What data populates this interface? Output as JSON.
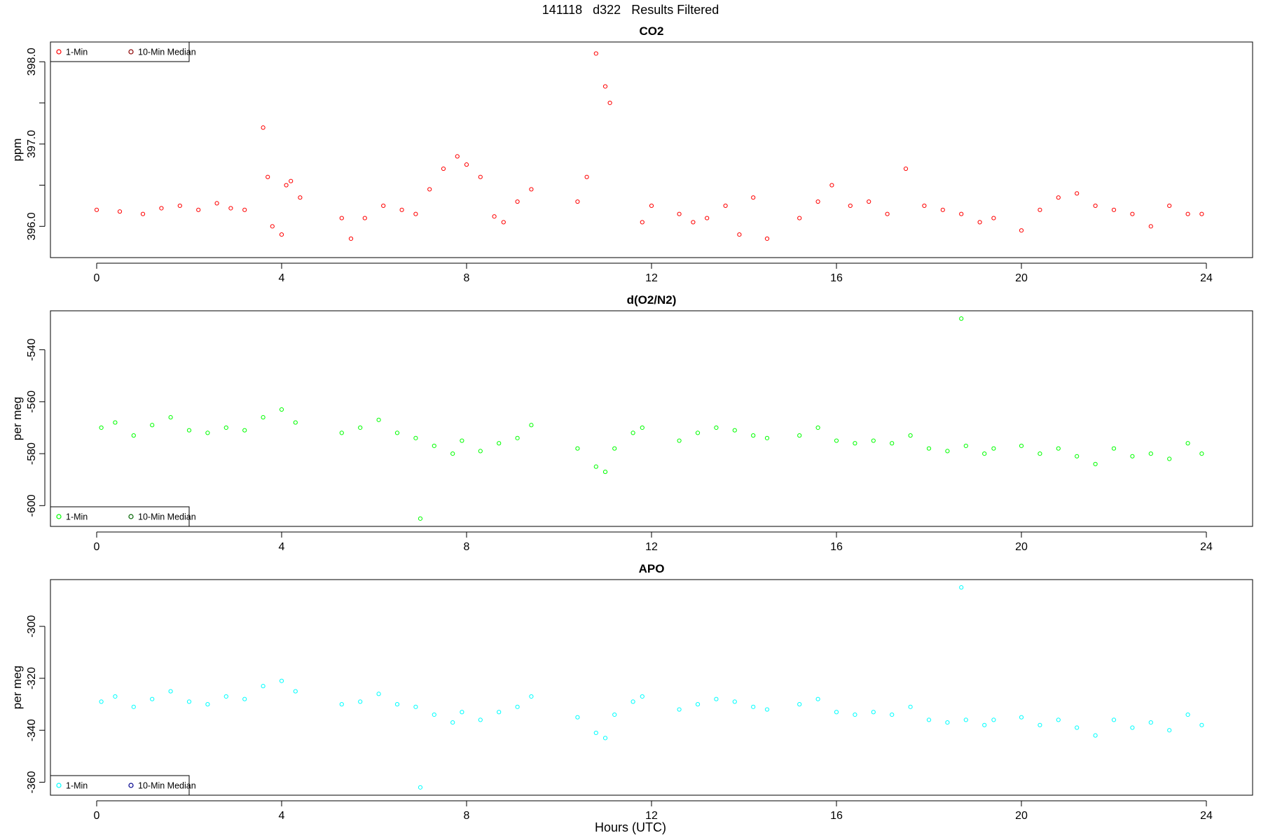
{
  "figure": {
    "title": "141118   d322   Results Filtered",
    "xlabel": "Hours (UTC)"
  },
  "chart_data": [
    {
      "type": "scatter",
      "title": "CO2",
      "xlabel": "",
      "ylabel": "ppm",
      "xlim": [
        -1.0,
        25.0
      ],
      "ylim": [
        395.62,
        398.24
      ],
      "xticks": [
        0,
        4,
        8,
        12,
        16,
        20,
        24
      ],
      "xtick_labels": [
        "0",
        "4",
        "8",
        "12",
        "16",
        "20",
        "24"
      ],
      "yticks": [
        396.0,
        396.5,
        397.0,
        397.5,
        398.0
      ],
      "ytick_labels": [
        "396.0",
        "",
        "397.0",
        "",
        "398.0"
      ],
      "grid": false,
      "legend_position": "top-left",
      "series": [
        {
          "name": "1-Min",
          "color": "#ff0000",
          "x": [
            0.0,
            0.5,
            1.0,
            1.4,
            1.8,
            2.2,
            2.6,
            2.9,
            3.2,
            3.6,
            3.7,
            3.8,
            4.0,
            4.1,
            4.2,
            4.4,
            5.3,
            5.5,
            5.8,
            6.2,
            6.6,
            6.9,
            7.2,
            7.5,
            7.8,
            8.0,
            8.3,
            8.6,
            8.8,
            9.1,
            9.4,
            10.4,
            10.6,
            10.8,
            11.0,
            11.1,
            11.8,
            12.0,
            12.6,
            12.9,
            13.2,
            13.6,
            13.9,
            14.2,
            14.5,
            15.2,
            15.6,
            15.9,
            16.3,
            16.7,
            17.1,
            17.5,
            17.9,
            18.3,
            18.7,
            19.1,
            19.4,
            20.0,
            20.4,
            20.8,
            21.2,
            21.6,
            22.0,
            22.4,
            22.8,
            23.2,
            23.6,
            23.9
          ],
          "y": [
            396.2,
            396.18,
            396.15,
            396.22,
            396.25,
            396.2,
            396.28,
            396.22,
            396.2,
            397.2,
            396.6,
            396.0,
            395.9,
            396.5,
            396.55,
            396.35,
            396.1,
            395.85,
            396.1,
            396.25,
            396.2,
            396.15,
            396.45,
            396.7,
            396.85,
            396.75,
            396.6,
            396.12,
            396.05,
            396.3,
            396.45,
            396.3,
            396.6,
            398.1,
            397.7,
            397.5,
            396.05,
            396.25,
            396.15,
            396.05,
            396.1,
            396.25,
            395.9,
            396.35,
            395.85,
            396.1,
            396.3,
            396.5,
            396.25,
            396.3,
            396.15,
            396.7,
            396.25,
            396.2,
            396.15,
            396.05,
            396.1,
            395.95,
            396.2,
            396.35,
            396.4,
            396.25,
            396.2,
            396.15,
            396.0,
            396.25,
            396.15,
            396.15
          ]
        },
        {
          "name": "10-Min Median",
          "color": "#8b0000",
          "x": [],
          "y": []
        }
      ]
    },
    {
      "type": "scatter",
      "title": "d(O2/N2)",
      "xlabel": "",
      "ylabel": "per meg",
      "xlim": [
        -1.0,
        25.0
      ],
      "ylim": [
        -608,
        -525
      ],
      "xticks": [
        0,
        4,
        8,
        12,
        16,
        20,
        24
      ],
      "xtick_labels": [
        "0",
        "4",
        "8",
        "12",
        "16",
        "20",
        "24"
      ],
      "yticks": [
        -600,
        -580,
        -560,
        -540
      ],
      "ytick_labels": [
        "-600",
        "-580",
        "-560",
        "-540"
      ],
      "grid": false,
      "legend_position": "bottom-left",
      "series": [
        {
          "name": "1-Min",
          "color": "#00ff00",
          "x": [
            0.1,
            0.4,
            0.8,
            1.2,
            1.6,
            2.0,
            2.4,
            2.8,
            3.2,
            3.6,
            4.0,
            4.3,
            5.3,
            5.7,
            6.1,
            6.5,
            6.9,
            7.0,
            7.3,
            7.7,
            7.9,
            8.3,
            8.7,
            9.1,
            9.4,
            10.4,
            10.8,
            11.0,
            11.2,
            11.6,
            11.8,
            12.6,
            13.0,
            13.4,
            13.8,
            14.2,
            14.5,
            15.2,
            15.6,
            16.0,
            16.4,
            16.8,
            17.2,
            17.6,
            18.0,
            18.4,
            18.7,
            18.8,
            19.2,
            19.4,
            20.0,
            20.4,
            20.8,
            21.2,
            21.6,
            22.0,
            22.4,
            22.8,
            23.2,
            23.6,
            23.9
          ],
          "y": [
            -570,
            -568,
            -573,
            -569,
            -566,
            -571,
            -572,
            -570,
            -571,
            -566,
            -563,
            -568,
            -572,
            -570,
            -567,
            -572,
            -574,
            -605,
            -577,
            -580,
            -575,
            -579,
            -576,
            -574,
            -569,
            -578,
            -585,
            -587,
            -578,
            -572,
            -570,
            -575,
            -572,
            -570,
            -571,
            -573,
            -574,
            -573,
            -570,
            -575,
            -576,
            -575,
            -576,
            -573,
            -578,
            -579,
            -528,
            -577,
            -580,
            -578,
            -577,
            -580,
            -578,
            -581,
            -584,
            -578,
            -581,
            -580,
            -582,
            -576,
            -580
          ]
        },
        {
          "name": "10-Min Median",
          "color": "#006400",
          "x": [],
          "y": []
        }
      ]
    },
    {
      "type": "scatter",
      "title": "APO",
      "xlabel": "",
      "ylabel": "per meg",
      "xlim": [
        -1.0,
        25.0
      ],
      "ylim": [
        -365,
        -282
      ],
      "xticks": [
        0,
        4,
        8,
        12,
        16,
        20,
        24
      ],
      "xtick_labels": [
        "0",
        "4",
        "8",
        "12",
        "16",
        "20",
        "24"
      ],
      "yticks": [
        -360,
        -340,
        -320,
        -300
      ],
      "ytick_labels": [
        "-360",
        "-340",
        "-320",
        "-300"
      ],
      "grid": false,
      "legend_position": "bottom-left",
      "series": [
        {
          "name": "1-Min",
          "color": "#00ffff",
          "x": [
            0.1,
            0.4,
            0.8,
            1.2,
            1.6,
            2.0,
            2.4,
            2.8,
            3.2,
            3.6,
            4.0,
            4.3,
            5.3,
            5.7,
            6.1,
            6.5,
            6.9,
            7.0,
            7.3,
            7.7,
            7.9,
            8.3,
            8.7,
            9.1,
            9.4,
            10.4,
            10.8,
            11.0,
            11.2,
            11.6,
            11.8,
            12.6,
            13.0,
            13.4,
            13.8,
            14.2,
            14.5,
            15.2,
            15.6,
            16.0,
            16.4,
            16.8,
            17.2,
            17.6,
            18.0,
            18.4,
            18.7,
            18.8,
            19.2,
            19.4,
            20.0,
            20.4,
            20.8,
            21.2,
            21.6,
            22.0,
            22.4,
            22.8,
            23.2,
            23.6,
            23.9
          ],
          "y": [
            -329,
            -327,
            -331,
            -328,
            -325,
            -329,
            -330,
            -327,
            -328,
            -323,
            -321,
            -325,
            -330,
            -329,
            -326,
            -330,
            -331,
            -362,
            -334,
            -337,
            -333,
            -336,
            -333,
            -331,
            -327,
            -335,
            -341,
            -343,
            -334,
            -329,
            -327,
            -332,
            -330,
            -328,
            -329,
            -331,
            -332,
            -330,
            -328,
            -333,
            -334,
            -333,
            -334,
            -331,
            -336,
            -337,
            -285,
            -336,
            -338,
            -336,
            -335,
            -338,
            -336,
            -339,
            -342,
            -336,
            -339,
            -337,
            -340,
            -334,
            -338
          ]
        },
        {
          "name": "10-Min Median",
          "color": "#00008b",
          "x": [],
          "y": []
        }
      ]
    }
  ]
}
